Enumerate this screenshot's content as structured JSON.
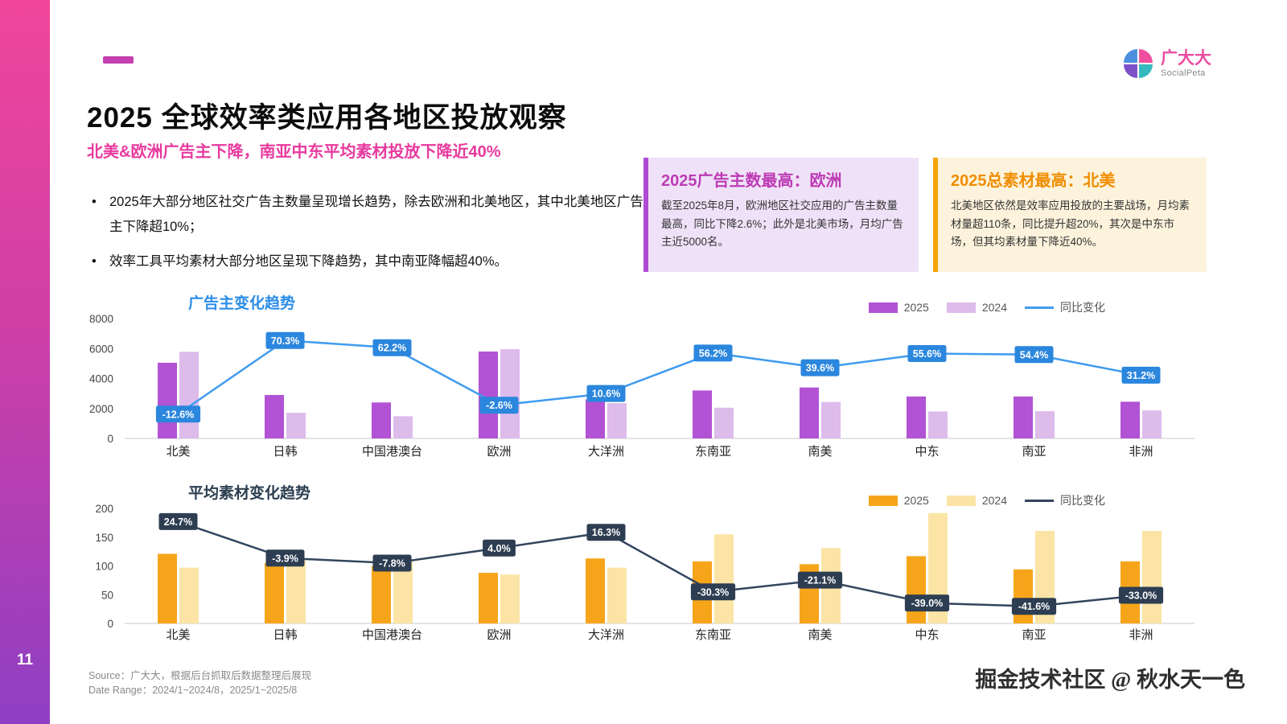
{
  "page": {
    "page_number": "11",
    "watermark": "掘金技术社区 @ 秋水天一色"
  },
  "brand": {
    "name": "广大大",
    "subtitle": "SocialPeta"
  },
  "header": {
    "title": "2025 全球效率类应用各地区投放观察",
    "subtitle": "北美&欧洲广告主下降，南亚中东平均素材投放下降近40%"
  },
  "bullets": [
    "2025年大部分地区社交广告主数量呈现增长趋势，除去欧洲和北美地区，其中北美地区广告主下降超10%；",
    "效率工具平均素材大部分地区呈现下降趋势，其中南亚降幅超40%。"
  ],
  "callouts": [
    {
      "title": "2025广告主数最高：欧洲",
      "body": "截至2025年8月，欧洲地区社交应用的广告主数量最高，同比下降2.6%；此外是北美市场，月均广告主近5000名。",
      "accent": "#ae4ad3"
    },
    {
      "title": "2025总素材最高：北美",
      "body": "北美地区依然是效率应用投放的主要战场，月均素材量超110条，同比提升超20%，其次是中东市场，但其均素材量下降近40%。",
      "accent": "#f5a30b"
    }
  ],
  "footer": {
    "source": "Source：广大大，根据后台抓取后数据整理后展现",
    "date_range": "Date Range：2024/1~2024/8，2025/1~2025/8"
  },
  "chart_data": [
    {
      "type": "bar",
      "title": "广告主变化趋势",
      "title_color": "#2b8de8",
      "categories": [
        "北美",
        "日韩",
        "中国港澳台",
        "欧洲",
        "大洋洲",
        "东南亚",
        "南美",
        "中东",
        "南亚",
        "非洲"
      ],
      "series": [
        {
          "name": "2025",
          "color": "#b153d4",
          "values": [
            5050,
            2900,
            2400,
            5800,
            2600,
            3200,
            3400,
            2800,
            2800,
            2450
          ]
        },
        {
          "name": "2024",
          "color": "#ddbbeb",
          "values": [
            5780,
            1705,
            1480,
            5955,
            2350,
            2050,
            2435,
            1800,
            1815,
            1870
          ]
        }
      ],
      "line": {
        "name": "同比变化",
        "color": "#3f9bef",
        "box_color": "#2b86dd",
        "values_pct": [
          -12.6,
          70.3,
          62.2,
          -2.6,
          10.6,
          56.2,
          39.6,
          55.6,
          54.4,
          31.2
        ]
      },
      "yticks": [
        0,
        2000,
        4000,
        6000,
        8000
      ],
      "ylim": [
        0,
        8000
      ],
      "pct_range": [
        -40,
        95
      ],
      "legend_position": "top-right",
      "grid": false
    },
    {
      "type": "bar",
      "title": "平均素材变化趋势",
      "title_color": "#2c3e50",
      "categories": [
        "北美",
        "日韩",
        "中国港澳台",
        "欧洲",
        "大洋洲",
        "东南亚",
        "南美",
        "中东",
        "南亚",
        "非洲"
      ],
      "series": [
        {
          "name": "2025",
          "color": "#f6a51a",
          "values": [
            121,
            105,
            100,
            88,
            113,
            108,
            103,
            117,
            94,
            108
          ]
        },
        {
          "name": "2024",
          "color": "#fbe4a5",
          "values": [
            97,
            109,
            108,
            85,
            97,
            155,
            131,
            192,
            161,
            161
          ]
        }
      ],
      "line": {
        "name": "同比变化",
        "color": "#33455e",
        "box_color": "#2e3e52",
        "values_pct": [
          24.7,
          -3.9,
          -7.8,
          4.0,
          16.3,
          -30.3,
          -21.1,
          -39.0,
          -41.6,
          -33.0
        ]
      },
      "yticks": [
        0,
        50,
        100,
        150,
        200
      ],
      "ylim": [
        0,
        200
      ],
      "pct_range": [
        -55,
        35
      ],
      "legend_position": "top-right",
      "grid": false
    }
  ]
}
